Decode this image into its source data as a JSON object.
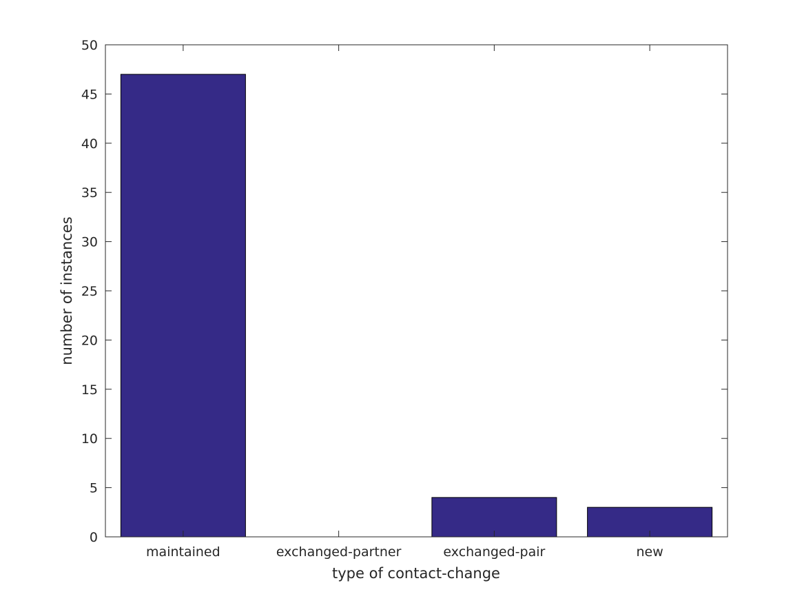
{
  "chart_data": {
    "type": "bar",
    "categories": [
      "maintained",
      "exchanged-partner",
      "exchanged-pair",
      "new"
    ],
    "values": [
      47,
      0,
      4,
      3
    ],
    "title": "",
    "xlabel": "type of contact-change",
    "ylabel": "number of instances",
    "ylim": [
      0,
      50
    ],
    "yticks": [
      "0",
      "5",
      "10",
      "15",
      "20",
      "25",
      "30",
      "35",
      "40",
      "45",
      "50"
    ],
    "grid": false,
    "box": true,
    "bar_color": "#352a87",
    "bar_edge_color": "#000000",
    "axis_color": "#262626"
  }
}
